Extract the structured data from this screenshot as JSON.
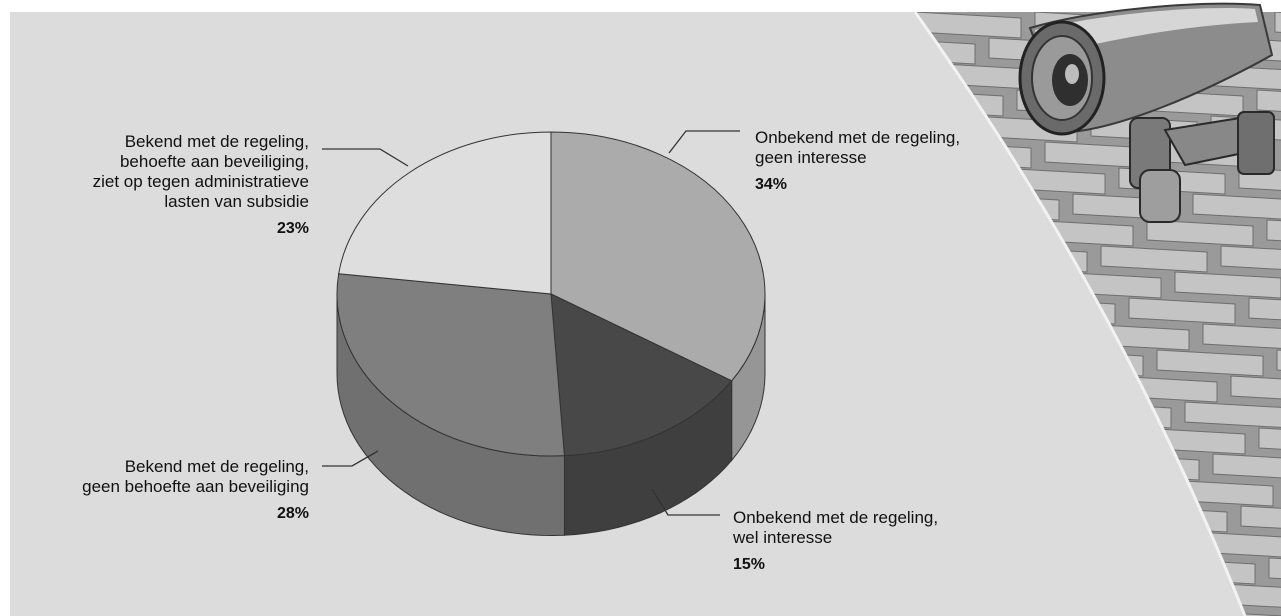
{
  "chart_data": {
    "type": "pie",
    "title": "",
    "slices": [
      {
        "label": "Onbekend met de regeling, geen interesse",
        "label_lines": [
          "Onbekend met de regeling,",
          "geen interesse"
        ],
        "value": 34,
        "value_label": "34%",
        "color": "#ababab"
      },
      {
        "label": "Onbekend met de regeling, wel interesse",
        "label_lines": [
          "Onbekend met de regeling,",
          "wel interesse"
        ],
        "value": 15,
        "value_label": "15%",
        "color": "#484848"
      },
      {
        "label": "Bekend met de regeling, geen behoefte aan beveiliging",
        "label_lines": [
          "Bekend met de regeling,",
          "geen behoefte aan beveiliging"
        ],
        "value": 28,
        "value_label": "28%",
        "color": "#7f7f7f"
      },
      {
        "label": "Bekend met de regeling, behoefte aan beveiliging, ziet op tegen administratieve lasten van subsidie",
        "label_lines": [
          "Bekend met de regeling,",
          "behoefte aan beveiliging,",
          "ziet op tegen administratieve",
          "lasten van subsidie"
        ],
        "value": 23,
        "value_label": "23%",
        "color": "#dedede"
      }
    ],
    "style": "3d-pie",
    "legend": "none"
  },
  "illustration": {
    "name": "security-camera-on-brick-wall"
  }
}
